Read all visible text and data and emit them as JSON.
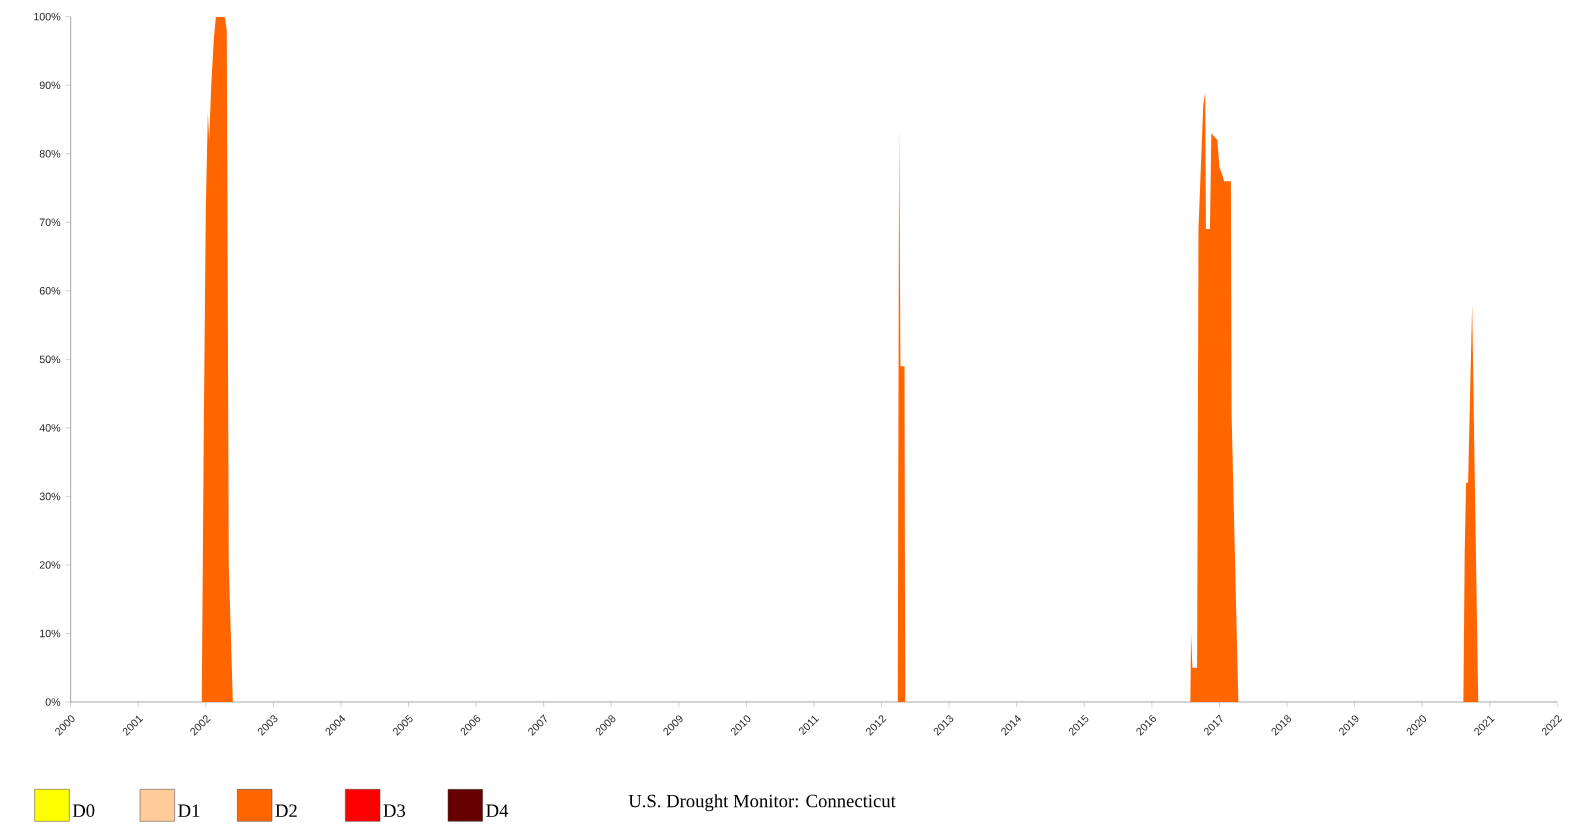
{
  "chart_data": {
    "type": "area",
    "title": "U.S. Drought Monitor: Connecticut",
    "xlim": [
      2000,
      2022
    ],
    "xticks": [
      2000,
      2001,
      2002,
      2003,
      2004,
      2005,
      2006,
      2007,
      2008,
      2009,
      2010,
      2011,
      2012,
      2013,
      2014,
      2015,
      2016,
      2017,
      2018,
      2019,
      2020,
      2021,
      2022
    ],
    "ylim": [
      0,
      100
    ],
    "yticks": [
      {
        "value": 0,
        "label": "0%"
      },
      {
        "value": 10,
        "label": "10%"
      },
      {
        "value": 20,
        "label": "20%"
      },
      {
        "value": 30,
        "label": "30%"
      },
      {
        "value": 40,
        "label": "40%"
      },
      {
        "value": 50,
        "label": "50%"
      },
      {
        "value": 60,
        "label": "60%"
      },
      {
        "value": 70,
        "label": "70%"
      },
      {
        "value": 80,
        "label": "80%"
      },
      {
        "value": 90,
        "label": "90%"
      },
      {
        "value": 100,
        "label": "100%"
      }
    ],
    "grid": false,
    "legend": "bottom",
    "series": [
      {
        "name": "D0",
        "color": "#ffff00"
      },
      {
        "name": "D1",
        "color": "#ffcc99"
      },
      {
        "name": "D2",
        "color": "#ff6600",
        "x": [
          2000,
          2001.94,
          2001.97,
          2002.0,
          2002.03,
          2002.05,
          2002.08,
          2002.12,
          2002.15,
          2002.28,
          2002.31,
          2002.34,
          2002.4,
          2012.24,
          2012.26,
          2012.28,
          2012.34,
          2012.35,
          2016.57,
          2016.58,
          2016.6,
          2016.67,
          2016.69,
          2016.76,
          2016.79,
          2016.8,
          2016.86,
          2016.88,
          2016.97,
          2017.0,
          2017.04,
          2017.07,
          2017.17,
          2017.18,
          2017.28,
          2020.61,
          2020.63,
          2020.65,
          2020.68,
          2020.74,
          2020.77,
          2020.83,
          2022
        ],
        "values": [
          0,
          0,
          40,
          72,
          86,
          82,
          90,
          97,
          100,
          100,
          98,
          20,
          0,
          0,
          84,
          49,
          49,
          0,
          0,
          10,
          5,
          5,
          69,
          87,
          89,
          69,
          69,
          83,
          82,
          78,
          77,
          76,
          76,
          42,
          0,
          0,
          22,
          32,
          32,
          58,
          38,
          0,
          0
        ]
      },
      {
        "name": "D3",
        "color": "#ff0000"
      },
      {
        "name": "D4",
        "color": "#660000"
      }
    ]
  }
}
